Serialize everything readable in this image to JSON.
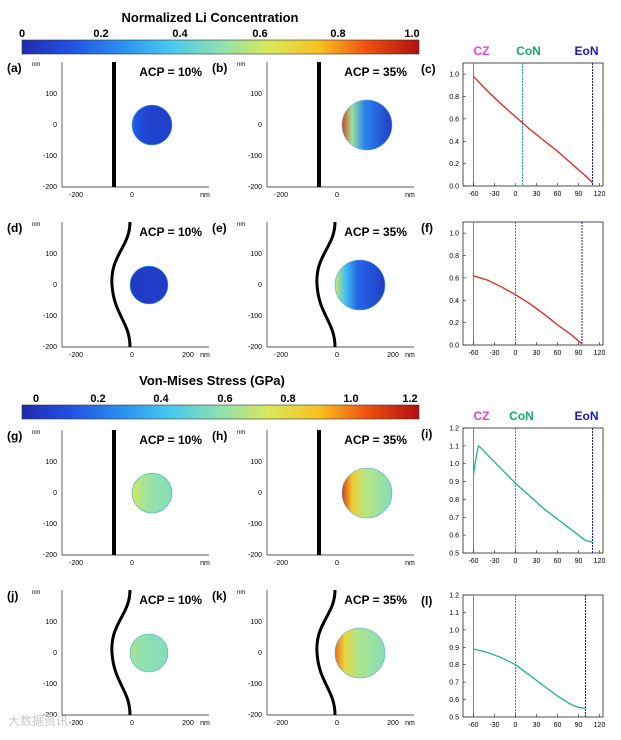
{
  "colorbars": [
    {
      "title": "Normalized Li Concentration",
      "ticks": [
        "0",
        "0.2",
        "0.4",
        "0.6",
        "0.8",
        "1.0"
      ],
      "range": [
        0,
        1
      ]
    },
    {
      "title": "Von-Mises Stress (GPa)",
      "ticks": [
        "0",
        "0.2",
        "0.4",
        "0.6",
        "0.8",
        "1.0",
        "1.2"
      ],
      "range": [
        0,
        1.2
      ]
    }
  ],
  "panels": [
    {
      "id": "a",
      "label": "(a)",
      "acp": "ACP = 10%",
      "boundary": "straight",
      "map": "conc",
      "fill": 0.15
    },
    {
      "id": "b",
      "label": "(b)",
      "acp": "ACP = 35%",
      "boundary": "straight",
      "map": "conc",
      "fill": 0.9
    },
    {
      "id": "d",
      "label": "(d)",
      "acp": "ACP = 10%",
      "boundary": "curved",
      "map": "conc",
      "fill": 0.05
    },
    {
      "id": "e",
      "label": "(e)",
      "acp": "ACP = 35%",
      "boundary": "curved",
      "map": "conc",
      "fill": 0.6
    },
    {
      "id": "g",
      "label": "(g)",
      "acp": "ACP = 10%",
      "boundary": "straight",
      "map": "stress",
      "fill": 0.75
    },
    {
      "id": "h",
      "label": "(h)",
      "acp": "ACP = 35%",
      "boundary": "straight",
      "map": "stress",
      "fill": 1.1
    },
    {
      "id": "j",
      "label": "(j)",
      "acp": "ACP = 10%",
      "boundary": "curved",
      "map": "stress",
      "fill": 0.65
    },
    {
      "id": "k",
      "label": "(k)",
      "acp": "ACP = 35%",
      "boundary": "curved",
      "map": "stress",
      "fill": 1.0
    }
  ],
  "map_axes": {
    "y_unit": "nm",
    "y_ticks": [
      "100",
      "0",
      "-100",
      "-200"
    ],
    "x_ticks_short": [
      "-200",
      "0"
    ],
    "x_ticks_long": [
      "-200",
      "0",
      "200"
    ],
    "x_unit": "nm"
  },
  "chart_data": [
    {
      "id": "c",
      "label": "(c)",
      "type": "line",
      "markers": [
        "CZ",
        "CoN",
        "EoN"
      ],
      "marker_x": [
        -60,
        10,
        110
      ],
      "xlim": [
        -75,
        125
      ],
      "ylim": [
        0,
        1.1
      ],
      "xticks": [
        -60,
        -30,
        0,
        30,
        60,
        90,
        120
      ],
      "yticks": [
        0.0,
        0.2,
        0.4,
        0.6,
        0.8,
        1.0
      ],
      "ytick_labels": [
        "0.0",
        "0.2",
        "0.4",
        "0.6",
        "0.8",
        "1.0"
      ],
      "series": [
        {
          "name": "Normalized Li Concentration",
          "color": "#e2231a",
          "x": [
            -60,
            -40,
            -20,
            0,
            20,
            40,
            60,
            80,
            100,
            110
          ],
          "y": [
            0.98,
            0.85,
            0.73,
            0.62,
            0.51,
            0.41,
            0.31,
            0.2,
            0.09,
            0.03
          ]
        }
      ]
    },
    {
      "id": "f",
      "label": "(f)",
      "type": "line",
      "markers": [],
      "marker_x": [
        -60,
        0,
        95
      ],
      "xlim": [
        -75,
        125
      ],
      "ylim": [
        0,
        1.1
      ],
      "xticks": [
        -60,
        -30,
        0,
        30,
        60,
        90,
        120
      ],
      "yticks": [
        0.0,
        0.2,
        0.4,
        0.6,
        0.8,
        1.0
      ],
      "ytick_labels": [
        "0.0",
        "0.2",
        "0.4",
        "0.6",
        "0.8",
        "1.0"
      ],
      "series": [
        {
          "name": "Normalized Li Concentration",
          "color": "#e2231a",
          "x": [
            -60,
            -40,
            -20,
            0,
            20,
            40,
            60,
            80,
            95
          ],
          "y": [
            0.62,
            0.58,
            0.52,
            0.45,
            0.37,
            0.28,
            0.18,
            0.09,
            0.01
          ]
        }
      ]
    },
    {
      "id": "i",
      "label": "(i)",
      "type": "line",
      "markers": [
        "CZ",
        "CoN",
        "EoN"
      ],
      "marker_x": [
        -60,
        0,
        110
      ],
      "xlim": [
        -75,
        125
      ],
      "ylim": [
        0.5,
        1.2
      ],
      "xticks": [
        -60,
        -30,
        0,
        30,
        60,
        90,
        120
      ],
      "yticks": [
        0.5,
        0.6,
        0.7,
        0.8,
        0.9,
        1.0,
        1.1,
        1.2
      ],
      "ytick_labels": [
        "0.5",
        "0.6",
        "0.7",
        "0.8",
        "0.9",
        "1.0",
        "1.1",
        "1.2"
      ],
      "series": [
        {
          "name": "Von-Mises Stress (GPa)",
          "color": "#1ab394",
          "x": [
            -60,
            -57,
            -53,
            -50,
            -40,
            -20,
            0,
            20,
            40,
            60,
            80,
            100,
            110
          ],
          "y": [
            0.94,
            1.02,
            1.1,
            1.09,
            1.05,
            0.97,
            0.89,
            0.82,
            0.75,
            0.69,
            0.63,
            0.57,
            0.56
          ]
        }
      ]
    },
    {
      "id": "l",
      "label": "(l)",
      "type": "line",
      "markers": [],
      "marker_x": [
        -60,
        0,
        100
      ],
      "xlim": [
        -75,
        125
      ],
      "ylim": [
        0.5,
        1.2
      ],
      "xticks": [
        -60,
        -30,
        0,
        30,
        60,
        90,
        120
      ],
      "yticks": [
        0.5,
        0.6,
        0.7,
        0.8,
        0.9,
        1.0,
        1.1,
        1.2
      ],
      "ytick_labels": [
        "0.5",
        "0.6",
        "0.7",
        "0.8",
        "0.9",
        "1.0",
        "1.1",
        "1.2"
      ],
      "series": [
        {
          "name": "Von-Mises Stress (GPa)",
          "color": "#1ab394",
          "x": [
            -60,
            -40,
            -20,
            0,
            20,
            40,
            60,
            80,
            90,
            100
          ],
          "y": [
            0.89,
            0.87,
            0.84,
            0.8,
            0.74,
            0.68,
            0.62,
            0.57,
            0.555,
            0.55
          ]
        }
      ]
    }
  ],
  "marker_colors": {
    "CZ": "#e83fd2",
    "CoN": "#12a86e",
    "EoN": "#1818b8"
  },
  "watermark": "大数据资讯"
}
